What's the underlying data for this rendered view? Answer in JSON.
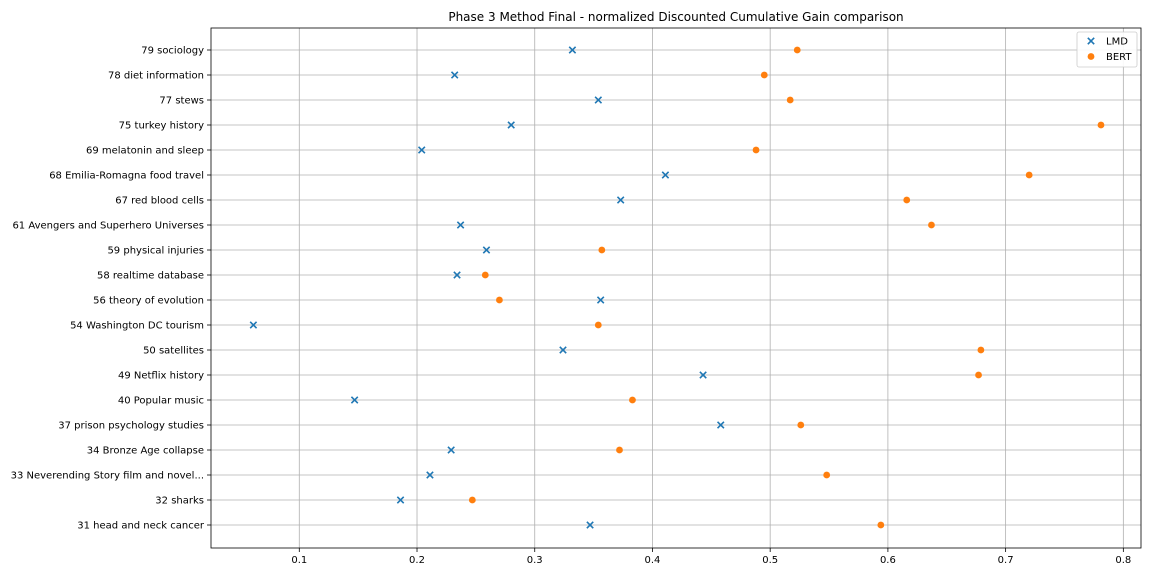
{
  "chart_data": {
    "type": "scatter",
    "title": "Phase 3 Method Final - normalized Discounted Cumulative Gain comparison",
    "xlabel": "",
    "ylabel": "",
    "xlim": [
      0.025,
      0.815
    ],
    "xticks": [
      0.1,
      0.2,
      0.3,
      0.4,
      0.5,
      0.6,
      0.7,
      0.8
    ],
    "xtick_labels": [
      "0.1",
      "0.2",
      "0.3",
      "0.4",
      "0.5",
      "0.6",
      "0.7",
      "0.8"
    ],
    "grid": true,
    "legend_position": "top-right",
    "categories": [
      "79 sociology",
      "78 diet information",
      "77 stews",
      "75 turkey history",
      "69 melatonin and sleep",
      "68 Emilia-Romagna food travel",
      "67 red blood cells",
      "61 Avengers and Superhero Universes",
      "59 physical injuries",
      "58 realtime database",
      "56 theory of evolution",
      "54 Washington DC tourism",
      "50 satellites",
      "49 Netflix history",
      "40 Popular music",
      "37 prison psychology studies",
      "34 Bronze Age collapse",
      "33 Neverending Story film and novel...",
      "32 sharks",
      "31 head and neck cancer"
    ],
    "series": [
      {
        "name": "LMD",
        "marker": "x",
        "color": "#1f77b4",
        "values": [
          0.332,
          0.232,
          0.354,
          0.28,
          0.204,
          0.411,
          0.373,
          0.237,
          0.259,
          0.234,
          0.356,
          0.061,
          0.324,
          0.443,
          0.147,
          0.458,
          0.229,
          0.211,
          0.186,
          0.347
        ]
      },
      {
        "name": "BERT",
        "marker": "o",
        "color": "#ff7f0e",
        "values": [
          0.523,
          0.495,
          0.517,
          0.781,
          0.488,
          0.72,
          0.616,
          0.637,
          0.357,
          0.258,
          0.27,
          0.354,
          0.679,
          0.677,
          0.383,
          0.526,
          0.372,
          0.548,
          0.247,
          0.594
        ]
      }
    ]
  }
}
